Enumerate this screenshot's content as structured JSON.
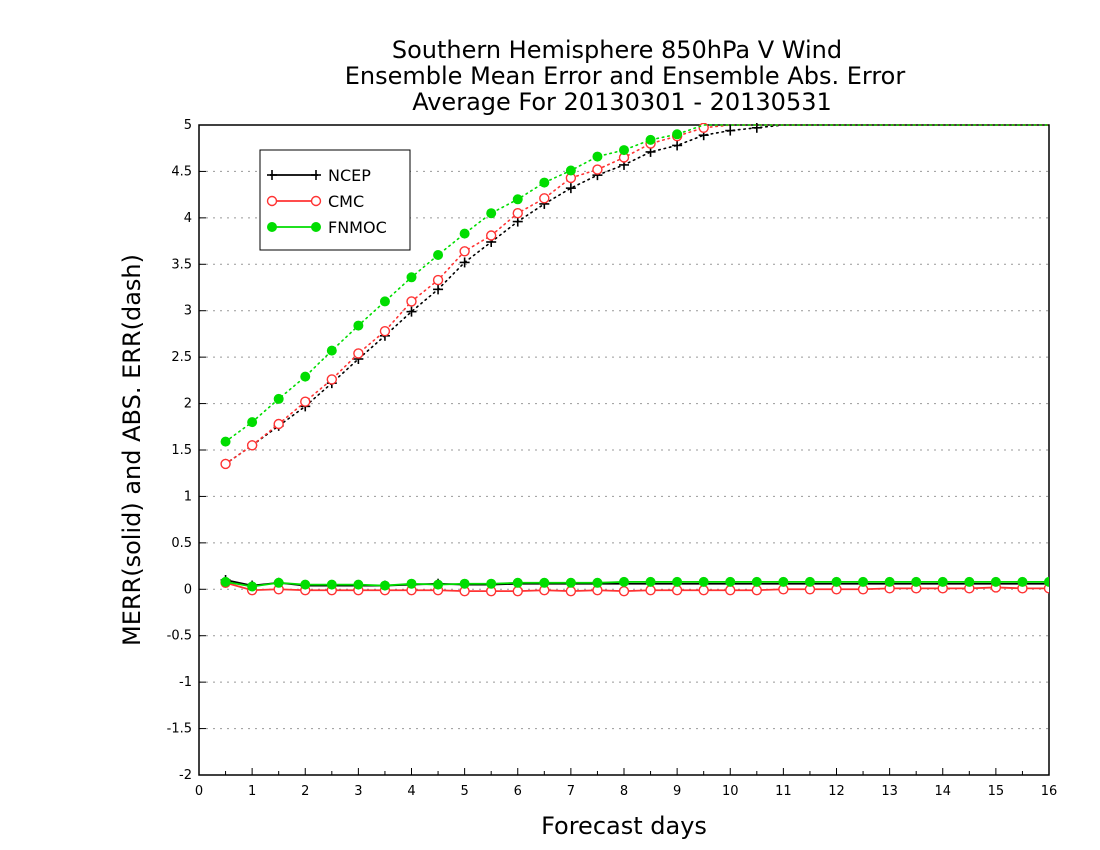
{
  "chart_data": {
    "type": "line",
    "title": [
      "Southern Hemisphere 850hPa V Wind",
      "Ensemble Mean Error and Ensemble Abs. Error",
      "Average For 20130301 - 20130531"
    ],
    "xlabel": "Forecast days",
    "ylabel": "MERR(solid) and ABS. ERR(dash)",
    "xlim": [
      0,
      16
    ],
    "ylim": [
      -2,
      5
    ],
    "xticks": [
      0,
      1,
      2,
      3,
      4,
      5,
      6,
      7,
      8,
      9,
      10,
      11,
      12,
      13,
      14,
      15,
      16
    ],
    "xtick_labels": [
      "0",
      "1",
      "2",
      "3",
      "4",
      "5",
      "6",
      "7",
      "8",
      "9",
      "10",
      "11",
      "12",
      "13",
      "14",
      "15",
      "16"
    ],
    "yticks": [
      -2,
      -1.5,
      -1,
      -0.5,
      0,
      0.5,
      1,
      1.5,
      2,
      2.5,
      3,
      3.5,
      4,
      4.5,
      5
    ],
    "ytick_labels": [
      "-2",
      "-1.5",
      "-1",
      "-0.5",
      "0",
      "0.5",
      "1",
      "1.5",
      "2",
      "2.5",
      "3",
      "3.5",
      "4",
      "4.5",
      "5"
    ],
    "grid": true,
    "legend_position": "top-left",
    "x": [
      0.5,
      1,
      1.5,
      2,
      2.5,
      3,
      3.5,
      4,
      4.5,
      5,
      5.5,
      6,
      6.5,
      7,
      7.5,
      8,
      8.5,
      9,
      9.5,
      10,
      10.5,
      11,
      11.5,
      12,
      12.5,
      13,
      13.5,
      14,
      14.5,
      15,
      15.5,
      16
    ],
    "series": [
      {
        "name": "NCEP",
        "color": "#000000",
        "marker": "plus",
        "mean_error": [
          0.1,
          0.04,
          0.07,
          0.04,
          0.04,
          0.04,
          0.04,
          0.05,
          0.06,
          0.05,
          0.05,
          0.06,
          0.06,
          0.06,
          0.06,
          0.06,
          0.06,
          0.06,
          0.06,
          0.06,
          0.06,
          0.06,
          0.06,
          0.06,
          0.06,
          0.06,
          0.06,
          0.06,
          0.06,
          0.06,
          0.06,
          0.06
        ],
        "abs_error": [
          1.35,
          1.55,
          1.76,
          1.97,
          2.22,
          2.48,
          2.73,
          2.99,
          3.23,
          3.52,
          3.74,
          3.96,
          4.15,
          4.32,
          4.46,
          4.57,
          4.71,
          4.78,
          4.89,
          4.94,
          4.97,
          5.0,
          5.0,
          5.0,
          5.0,
          5.0,
          5.0,
          5.0,
          5.0,
          5.0,
          5.0,
          5.0
        ]
      },
      {
        "name": "CMC",
        "color": "#ff3333",
        "marker": "open-circle",
        "mean_error": [
          0.07,
          -0.01,
          0.0,
          -0.01,
          -0.01,
          -0.01,
          -0.01,
          -0.01,
          -0.01,
          -0.02,
          -0.02,
          -0.02,
          -0.01,
          -0.02,
          -0.01,
          -0.02,
          -0.01,
          -0.01,
          -0.01,
          -0.01,
          -0.01,
          0.0,
          0.0,
          0.0,
          0.0,
          0.01,
          0.01,
          0.01,
          0.01,
          0.02,
          0.01,
          0.01
        ],
        "abs_error": [
          1.35,
          1.55,
          1.78,
          2.02,
          2.26,
          2.54,
          2.78,
          3.1,
          3.33,
          3.64,
          3.81,
          4.05,
          4.21,
          4.43,
          4.52,
          4.65,
          4.8,
          4.88,
          4.97,
          5.0,
          5.0,
          5.0,
          5.0,
          5.0,
          5.0,
          5.0,
          5.0,
          5.0,
          5.0,
          5.0,
          5.0,
          5.0
        ]
      },
      {
        "name": "FNMOC",
        "color": "#00dd00",
        "marker": "filled-circle",
        "mean_error": [
          0.08,
          0.03,
          0.07,
          0.05,
          0.05,
          0.05,
          0.04,
          0.06,
          0.05,
          0.06,
          0.06,
          0.07,
          0.07,
          0.07,
          0.07,
          0.08,
          0.08,
          0.08,
          0.08,
          0.08,
          0.08,
          0.08,
          0.08,
          0.08,
          0.08,
          0.08,
          0.08,
          0.08,
          0.08,
          0.08,
          0.08,
          0.08
        ],
        "abs_error": [
          1.59,
          1.8,
          2.05,
          2.29,
          2.57,
          2.84,
          3.1,
          3.36,
          3.6,
          3.83,
          4.05,
          4.2,
          4.38,
          4.51,
          4.66,
          4.73,
          4.84,
          4.9,
          5.0,
          5.0,
          5.0,
          5.0,
          5.0,
          5.0,
          5.0,
          5.0,
          5.0,
          5.0,
          5.0,
          5.0,
          5.0,
          5.0
        ]
      }
    ]
  }
}
